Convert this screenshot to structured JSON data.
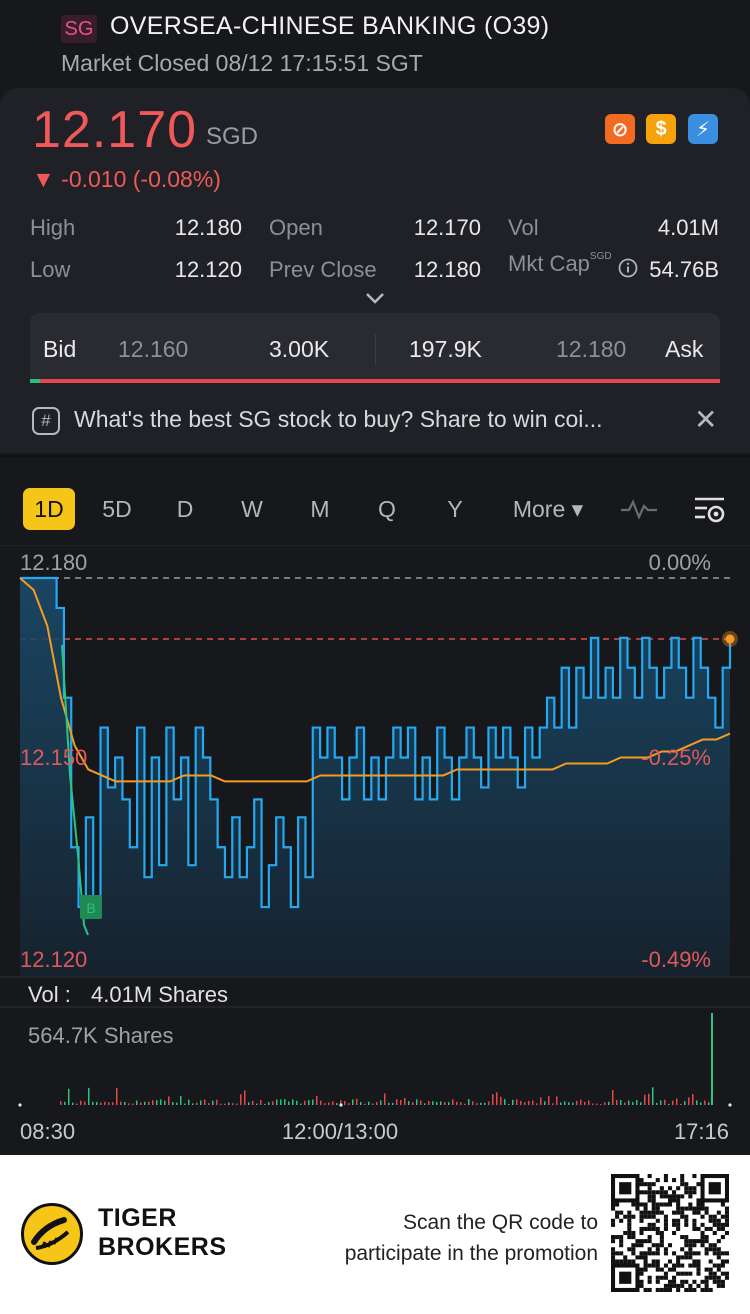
{
  "header": {
    "market": "SG",
    "name": "OVERSEA-CHINESE BANKING (O39)",
    "status": "Market Closed 08/12 17:15:51 SGT"
  },
  "quote": {
    "price": "12.170",
    "currency": "SGD",
    "change": "▼ -0.010 (-0.08%)",
    "badges": [
      {
        "name": "no-short-icon",
        "glyph": "⊘",
        "color": "#f26b21"
      },
      {
        "name": "dollar-icon",
        "glyph": "$",
        "color": "#f5a20c"
      },
      {
        "name": "flash-icon",
        "glyph": "⚡",
        "color": "#3b8fe0"
      }
    ]
  },
  "stats": {
    "high_label": "High",
    "high": "12.180",
    "low_label": "Low",
    "low": "12.120",
    "open_label": "Open",
    "open": "12.170",
    "prev_close_label": "Prev Close",
    "prev_close": "12.180",
    "vol_label": "Vol",
    "vol": "4.01M",
    "mkt_cap_label": "Mkt Cap",
    "mkt_cap_currency": "SGD",
    "mkt_cap": "54.76B"
  },
  "bidask": {
    "bid_label": "Bid",
    "bid_price": "12.160",
    "bid_size": "3.00K",
    "ask_size": "197.9K",
    "ask_price": "12.180",
    "ask_label": "Ask"
  },
  "promo": {
    "text": "What's the best SG stock to buy? Share to win coi..."
  },
  "tabs": [
    "1D",
    "5D",
    "D",
    "W",
    "M",
    "Q",
    "Y",
    "More ▾"
  ],
  "chart_data": {
    "type": "line",
    "y_left_ticks": [
      "12.180",
      "12.150",
      "12.120"
    ],
    "y_right_ticks": [
      "0.00%",
      "-0.25%",
      "-0.49%"
    ],
    "ylim": [
      12.12,
      12.18
    ],
    "prev_close": 12.18,
    "x_ticks": [
      "08:30",
      "12:00/13:00",
      "17:16"
    ],
    "volume_label": "Vol :",
    "volume_value": "4.01M Shares",
    "volume_max_label": "564.7K Shares",
    "series": [
      {
        "kind": "price",
        "color": "#23a8f2",
        "values": [
          12.18,
          12.18,
          12.18,
          12.18,
          12.18,
          12.175,
          12.16,
          12.135,
          12.125,
          12.14,
          12.125,
          12.155,
          12.145,
          12.15,
          12.143,
          12.135,
          12.155,
          12.13,
          12.15,
          12.132,
          12.155,
          12.143,
          12.15,
          12.132,
          12.155,
          12.15,
          12.143,
          12.135,
          12.13,
          12.14,
          12.13,
          12.135,
          12.143,
          12.125,
          12.132,
          12.14,
          12.135,
          12.125,
          12.14,
          12.13,
          12.155,
          12.15,
          12.155,
          12.15,
          12.143,
          12.15,
          12.155,
          12.143,
          12.15,
          12.143,
          12.15,
          12.155,
          12.15,
          12.155,
          12.143,
          12.15,
          12.143,
          12.155,
          12.15,
          12.143,
          12.15,
          12.155,
          12.15,
          12.145,
          12.155,
          12.15,
          12.155,
          12.15,
          12.145,
          12.155,
          12.15,
          12.155,
          12.16,
          12.155,
          12.165,
          12.155,
          12.165,
          12.16,
          12.17,
          12.16,
          12.165,
          12.16,
          12.17,
          12.165,
          12.16,
          12.17,
          12.165,
          12.16,
          12.165,
          12.17,
          12.165,
          12.16,
          12.17,
          12.165,
          12.16,
          12.155,
          12.165,
          12.17
        ]
      },
      {
        "kind": "average",
        "color": "#f59b23",
        "values": [
          12.18,
          12.178,
          12.172,
          12.16,
          12.152,
          12.148,
          12.147,
          12.146,
          12.146,
          12.146,
          12.146,
          12.146,
          12.147,
          12.147,
          12.147,
          12.146,
          12.146,
          12.146,
          12.146,
          12.146,
          12.146,
          12.146,
          12.147,
          12.147,
          12.147,
          12.147,
          12.147,
          12.147,
          12.147,
          12.147,
          12.147,
          12.147,
          12.148,
          12.148,
          12.148,
          12.148,
          12.148,
          12.148,
          12.148,
          12.148,
          12.149,
          12.149,
          12.149,
          12.149,
          12.15,
          12.15,
          12.15,
          12.151,
          12.151,
          12.152,
          12.153,
          12.153,
          12.154
        ]
      }
    ]
  },
  "footer": {
    "brand_line1": "TIGER",
    "brand_line2": "BROKERS",
    "scan_line1": "Scan the QR code to",
    "scan_line2": "participate in the promotion"
  }
}
